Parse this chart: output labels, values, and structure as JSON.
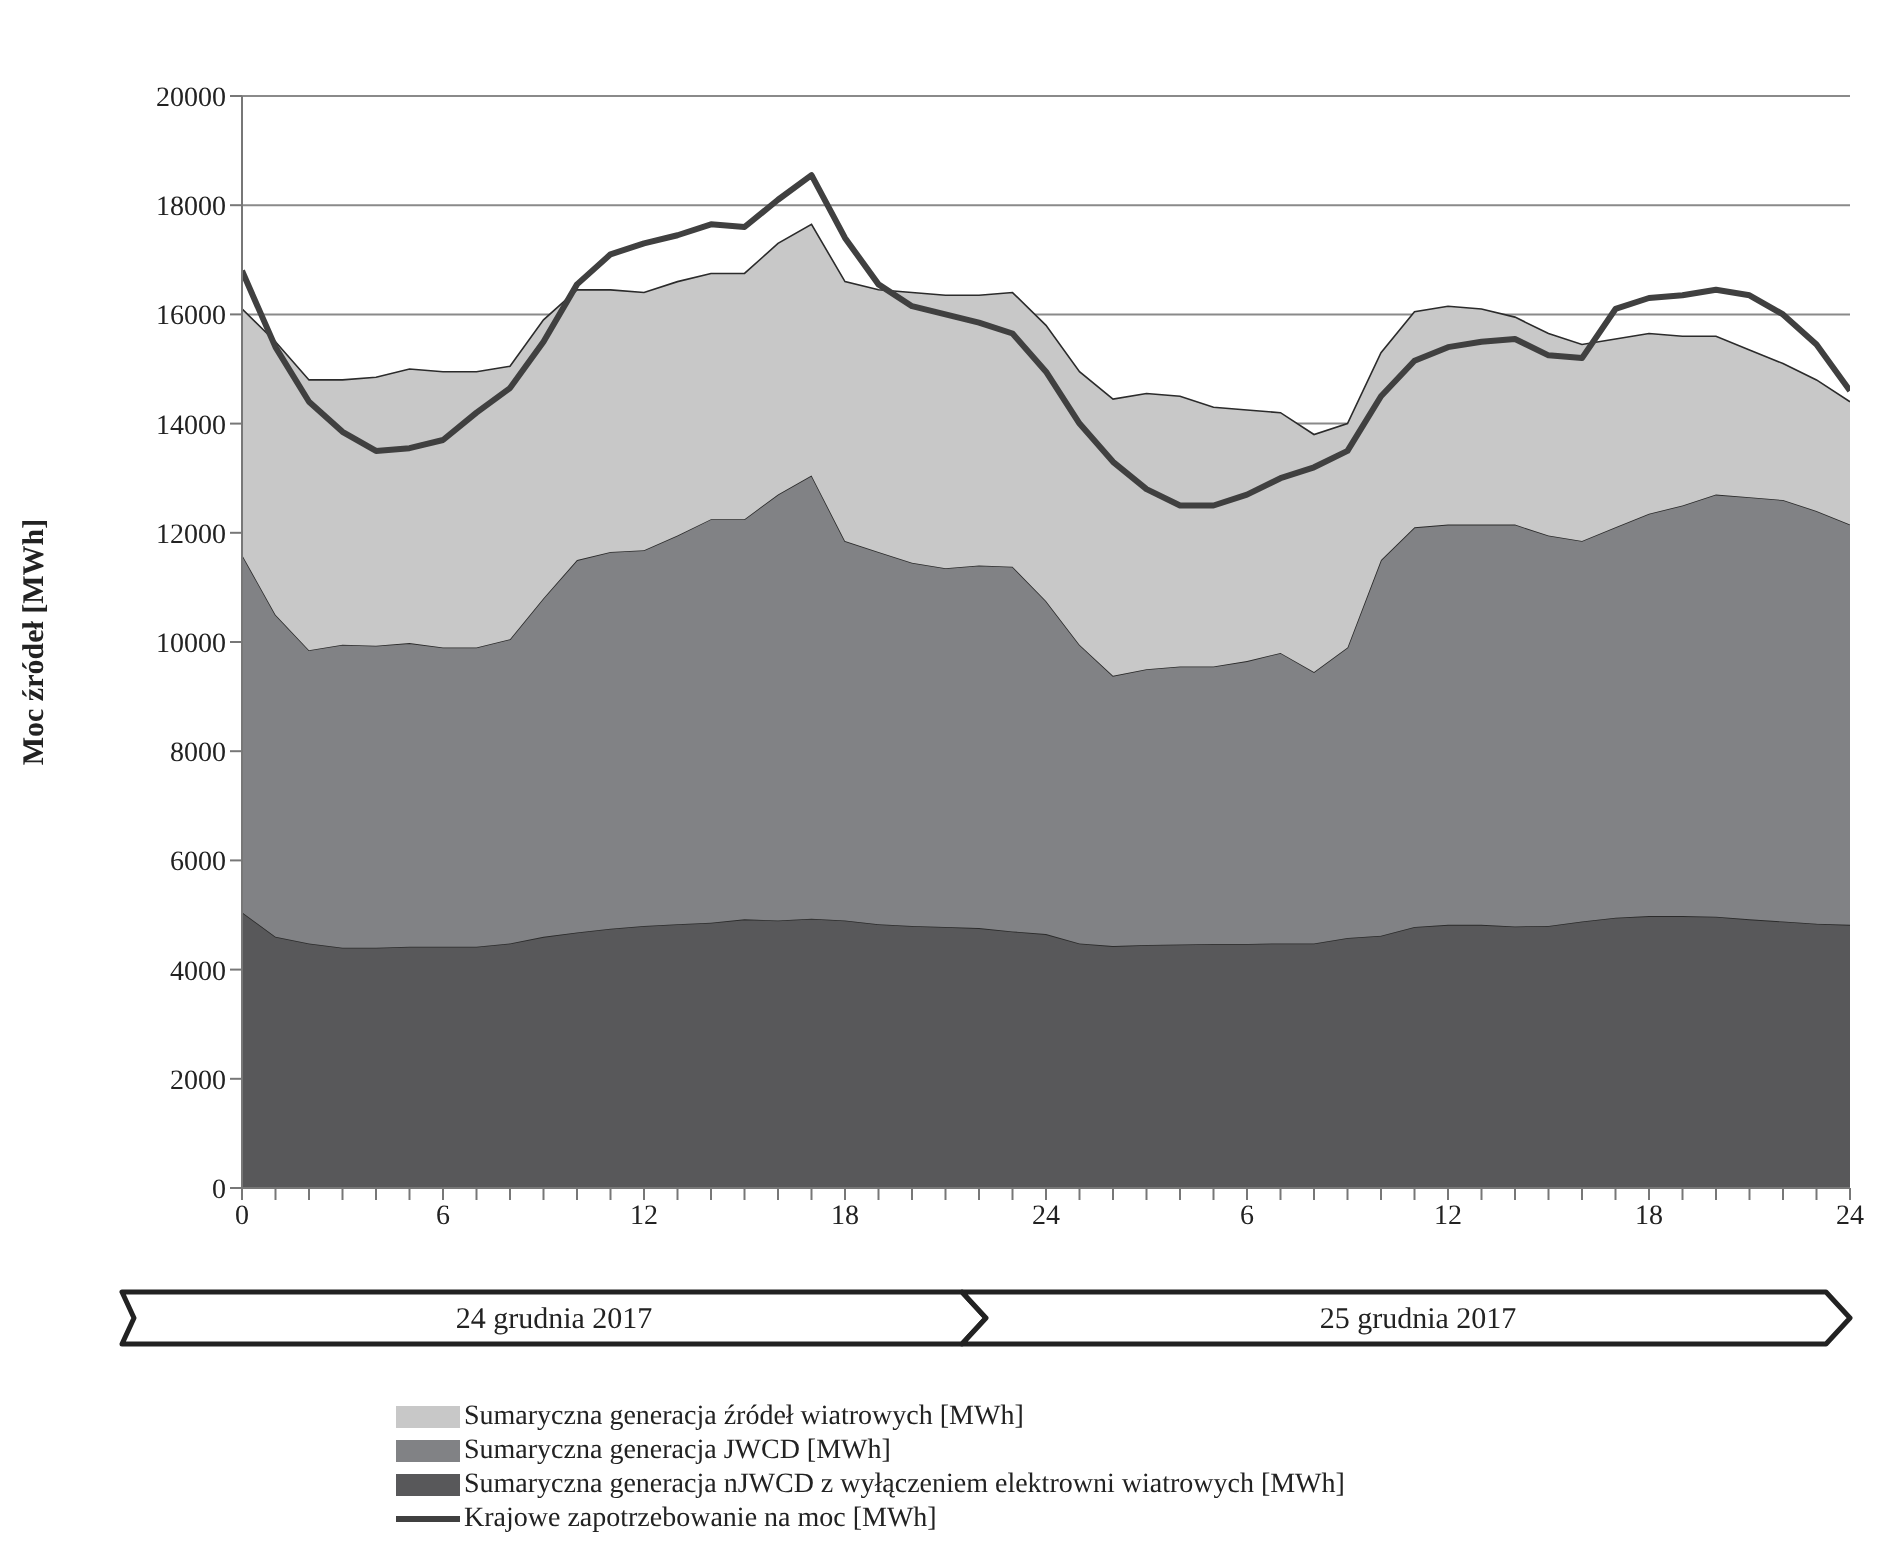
{
  "chart_data": {
    "type": "area",
    "stacked": true,
    "ylabel": "Moc źródeł [MWh]",
    "x": [
      "2017-12-24T00:00",
      "2017-12-24T01:00",
      "2017-12-24T02:00",
      "2017-12-24T03:00",
      "2017-12-24T04:00",
      "2017-12-24T05:00",
      "2017-12-24T06:00",
      "2017-12-24T07:00",
      "2017-12-24T08:00",
      "2017-12-24T09:00",
      "2017-12-24T10:00",
      "2017-12-24T11:00",
      "2017-12-24T12:00",
      "2017-12-24T13:00",
      "2017-12-24T14:00",
      "2017-12-24T15:00",
      "2017-12-24T16:00",
      "2017-12-24T17:00",
      "2017-12-24T18:00",
      "2017-12-24T19:00",
      "2017-12-24T20:00",
      "2017-12-24T21:00",
      "2017-12-24T22:00",
      "2017-12-24T23:00",
      "2017-12-25T00:00",
      "2017-12-25T01:00",
      "2017-12-25T02:00",
      "2017-12-25T03:00",
      "2017-12-25T04:00",
      "2017-12-25T05:00",
      "2017-12-25T06:00",
      "2017-12-25T07:00",
      "2017-12-25T08:00",
      "2017-12-25T09:00",
      "2017-12-25T10:00",
      "2017-12-25T11:00",
      "2017-12-25T12:00",
      "2017-12-25T13:00",
      "2017-12-25T14:00",
      "2017-12-25T15:00",
      "2017-12-25T16:00",
      "2017-12-25T17:00",
      "2017-12-25T18:00",
      "2017-12-25T19:00",
      "2017-12-25T20:00",
      "2017-12-25T21:00",
      "2017-12-25T22:00",
      "2017-12-25T23:00",
      "2017-12-26T00:00"
    ],
    "xlim": [
      "2017-12-24T00:00",
      "2017-12-26T00:00"
    ],
    "xticks": [
      {
        "value": "2017-12-24T00:00",
        "label": "0"
      },
      {
        "value": "2017-12-24T01:00",
        "label": null
      },
      {
        "value": "2017-12-24T02:00",
        "label": null
      },
      {
        "value": "2017-12-24T03:00",
        "label": null
      },
      {
        "value": "2017-12-24T04:00",
        "label": null
      },
      {
        "value": "2017-12-24T05:00",
        "label": null
      },
      {
        "value": "2017-12-24T06:00",
        "label": "6"
      },
      {
        "value": "2017-12-24T07:00",
        "label": null
      },
      {
        "value": "2017-12-24T08:00",
        "label": null
      },
      {
        "value": "2017-12-24T09:00",
        "label": null
      },
      {
        "value": "2017-12-24T10:00",
        "label": null
      },
      {
        "value": "2017-12-24T11:00",
        "label": null
      },
      {
        "value": "2017-12-24T12:00",
        "label": "12"
      },
      {
        "value": "2017-12-24T13:00",
        "label": null
      },
      {
        "value": "2017-12-24T14:00",
        "label": null
      },
      {
        "value": "2017-12-24T15:00",
        "label": null
      },
      {
        "value": "2017-12-24T16:00",
        "label": null
      },
      {
        "value": "2017-12-24T17:00",
        "label": null
      },
      {
        "value": "2017-12-24T18:00",
        "label": "18"
      },
      {
        "value": "2017-12-24T19:00",
        "label": null
      },
      {
        "value": "2017-12-24T20:00",
        "label": null
      },
      {
        "value": "2017-12-24T21:00",
        "label": null
      },
      {
        "value": "2017-12-24T22:00",
        "label": null
      },
      {
        "value": "2017-12-24T23:00",
        "label": null
      },
      {
        "value": "2017-12-25T00:00",
        "label": "24"
      },
      {
        "value": "2017-12-25T01:00",
        "label": null
      },
      {
        "value": "2017-12-25T02:00",
        "label": null
      },
      {
        "value": "2017-12-25T03:00",
        "label": null
      },
      {
        "value": "2017-12-25T04:00",
        "label": null
      },
      {
        "value": "2017-12-25T05:00",
        "label": null
      },
      {
        "value": "2017-12-25T06:00",
        "label": "6"
      },
      {
        "value": "2017-12-25T07:00",
        "label": null
      },
      {
        "value": "2017-12-25T08:00",
        "label": null
      },
      {
        "value": "2017-12-25T09:00",
        "label": null
      },
      {
        "value": "2017-12-25T10:00",
        "label": null
      },
      {
        "value": "2017-12-25T11:00",
        "label": null
      },
      {
        "value": "2017-12-25T12:00",
        "label": "12"
      },
      {
        "value": "2017-12-25T13:00",
        "label": null
      },
      {
        "value": "2017-12-25T14:00",
        "label": null
      },
      {
        "value": "2017-12-25T15:00",
        "label": null
      },
      {
        "value": "2017-12-25T16:00",
        "label": null
      },
      {
        "value": "2017-12-25T17:00",
        "label": null
      },
      {
        "value": "2017-12-25T18:00",
        "label": "18"
      },
      {
        "value": "2017-12-25T19:00",
        "label": null
      },
      {
        "value": "2017-12-25T20:00",
        "label": null
      },
      {
        "value": "2017-12-25T21:00",
        "label": null
      },
      {
        "value": "2017-12-25T22:00",
        "label": null
      },
      {
        "value": "2017-12-25T23:00",
        "label": null
      },
      {
        "value": "2017-12-26T00:00",
        "label": "24"
      }
    ],
    "ylim": [
      0,
      20000
    ],
    "yticks": [
      0,
      2000,
      4000,
      6000,
      8000,
      10000,
      12000,
      14000,
      16000,
      18000,
      20000
    ],
    "grid": "y",
    "legend": "bottom",
    "annotations": [
      "24 grudnia 2017",
      "25 grudnia 2017"
    ],
    "series": [
      {
        "name": "Sumaryczna generacja nJWCD z wyłączeniem elektrowni wiatrowych [MWh]",
        "color": "#58585a",
        "values": [
          5050,
          4600,
          4480,
          4400,
          4400,
          4420,
          4420,
          4420,
          4480,
          4600,
          4680,
          4750,
          4800,
          4830,
          4860,
          4920,
          4900,
          4930,
          4900,
          4830,
          4800,
          4780,
          4760,
          4700,
          4650,
          4480,
          4430,
          4450,
          4460,
          4470,
          4470,
          4480,
          4480,
          4580,
          4620,
          4780,
          4820,
          4820,
          4790,
          4800,
          4880,
          4950,
          4980,
          4980,
          4970,
          4920,
          4880,
          4840,
          4820
        ]
      },
      {
        "name": "Sumaryczna generacja JWCD [MWh]",
        "color": "#818285",
        "values": [
          6550,
          5900,
          5370,
          5550,
          5530,
          5560,
          5480,
          5480,
          5570,
          6200,
          6820,
          6900,
          6880,
          7120,
          7390,
          7330,
          7800,
          8120,
          6950,
          6820,
          6650,
          6570,
          6640,
          6680,
          6100,
          5470,
          4950,
          5050,
          5090,
          5080,
          5180,
          5320,
          4970,
          5320,
          6880,
          7320,
          7330,
          7330,
          7360,
          7150,
          6970,
          7150,
          7370,
          7520,
          7730,
          7730,
          7720,
          7560,
          7330
        ]
      },
      {
        "name": "Sumaryczna generacja źródeł wiatrowych [MWh]",
        "color": "#c8c8c8",
        "values": [
          4500,
          5000,
          4950,
          4850,
          4920,
          5020,
          5050,
          5050,
          5000,
          5100,
          4950,
          4800,
          4720,
          4650,
          4500,
          4500,
          4600,
          4600,
          4750,
          4800,
          4950,
          5000,
          4950,
          5020,
          5050,
          5000,
          5070,
          5050,
          4950,
          4750,
          4600,
          4400,
          4350,
          4100,
          3800,
          3950,
          4000,
          3950,
          3800,
          3700,
          3600,
          3450,
          3300,
          3100,
          2900,
          2700,
          2500,
          2400,
          2250
        ]
      },
      {
        "name": "Krajowe zapotrzebowanie na moc [MWh]",
        "type": "line",
        "color": "#404040",
        "values": [
          16800,
          15400,
          14400,
          13850,
          13500,
          13550,
          13700,
          14200,
          14650,
          15500,
          16550,
          17100,
          17300,
          17450,
          17650,
          17600,
          18100,
          18550,
          17400,
          16550,
          16150,
          16000,
          15850,
          15650,
          14950,
          14000,
          13300,
          12800,
          12500,
          12500,
          12700,
          13000,
          13200,
          13500,
          14500,
          15150,
          15400,
          15500,
          15550,
          15250,
          15200,
          16100,
          16300,
          16350,
          16450,
          16350,
          16000,
          15450,
          14600
        ]
      }
    ]
  }
}
